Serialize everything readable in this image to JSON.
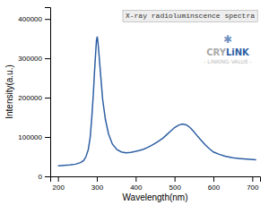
{
  "chart_data": {
    "type": "line",
    "title": "X-ray radioluminscence spectra",
    "xlabel": "Wavelength(nm)",
    "ylabel": "Intensity(a.u.)",
    "color": "#2e5fa3",
    "xlim": [
      180,
      720
    ],
    "ylim": [
      0,
      430000
    ],
    "xticks": [
      200,
      300,
      400,
      500,
      600,
      700
    ],
    "yticks": [
      0,
      100000,
      200000,
      300000,
      400000
    ],
    "x": [
      200,
      215,
      230,
      245,
      258,
      266,
      272,
      278,
      283,
      287,
      291,
      294,
      297,
      299,
      301,
      303,
      306,
      310,
      315,
      322,
      330,
      340,
      352,
      363,
      375,
      387,
      398,
      410,
      420,
      430,
      440,
      450,
      460,
      470,
      480,
      490,
      500,
      510,
      520,
      530,
      540,
      550,
      560,
      570,
      580,
      590,
      600,
      615,
      630,
      650,
      670,
      695,
      710
    ],
    "values": [
      27000,
      28000,
      29000,
      31000,
      35000,
      40000,
      50000,
      68000,
      100000,
      150000,
      210000,
      265000,
      315000,
      345000,
      355000,
      340000,
      305000,
      255000,
      195000,
      145000,
      108000,
      82000,
      68000,
      62000,
      60000,
      61000,
      63000,
      66000,
      69000,
      73000,
      78000,
      84000,
      90000,
      97000,
      106000,
      115000,
      124000,
      130000,
      133000,
      131000,
      124000,
      113000,
      101000,
      90000,
      79000,
      70000,
      62000,
      56000,
      51000,
      47000,
      45000,
      43000,
      42000
    ],
    "annotations": [
      {
        "text": "✱",
        "color": "#2e5fa3"
      },
      {
        "text": "CRY",
        "color": "#aaaaaa"
      },
      {
        "text": "Li",
        "color": "#2e5fa3"
      },
      {
        "text": "NK",
        "color": "#2e5fa3"
      },
      {
        "text": "- LINKING VALUE -",
        "color": "#bbbbbb"
      }
    ]
  }
}
